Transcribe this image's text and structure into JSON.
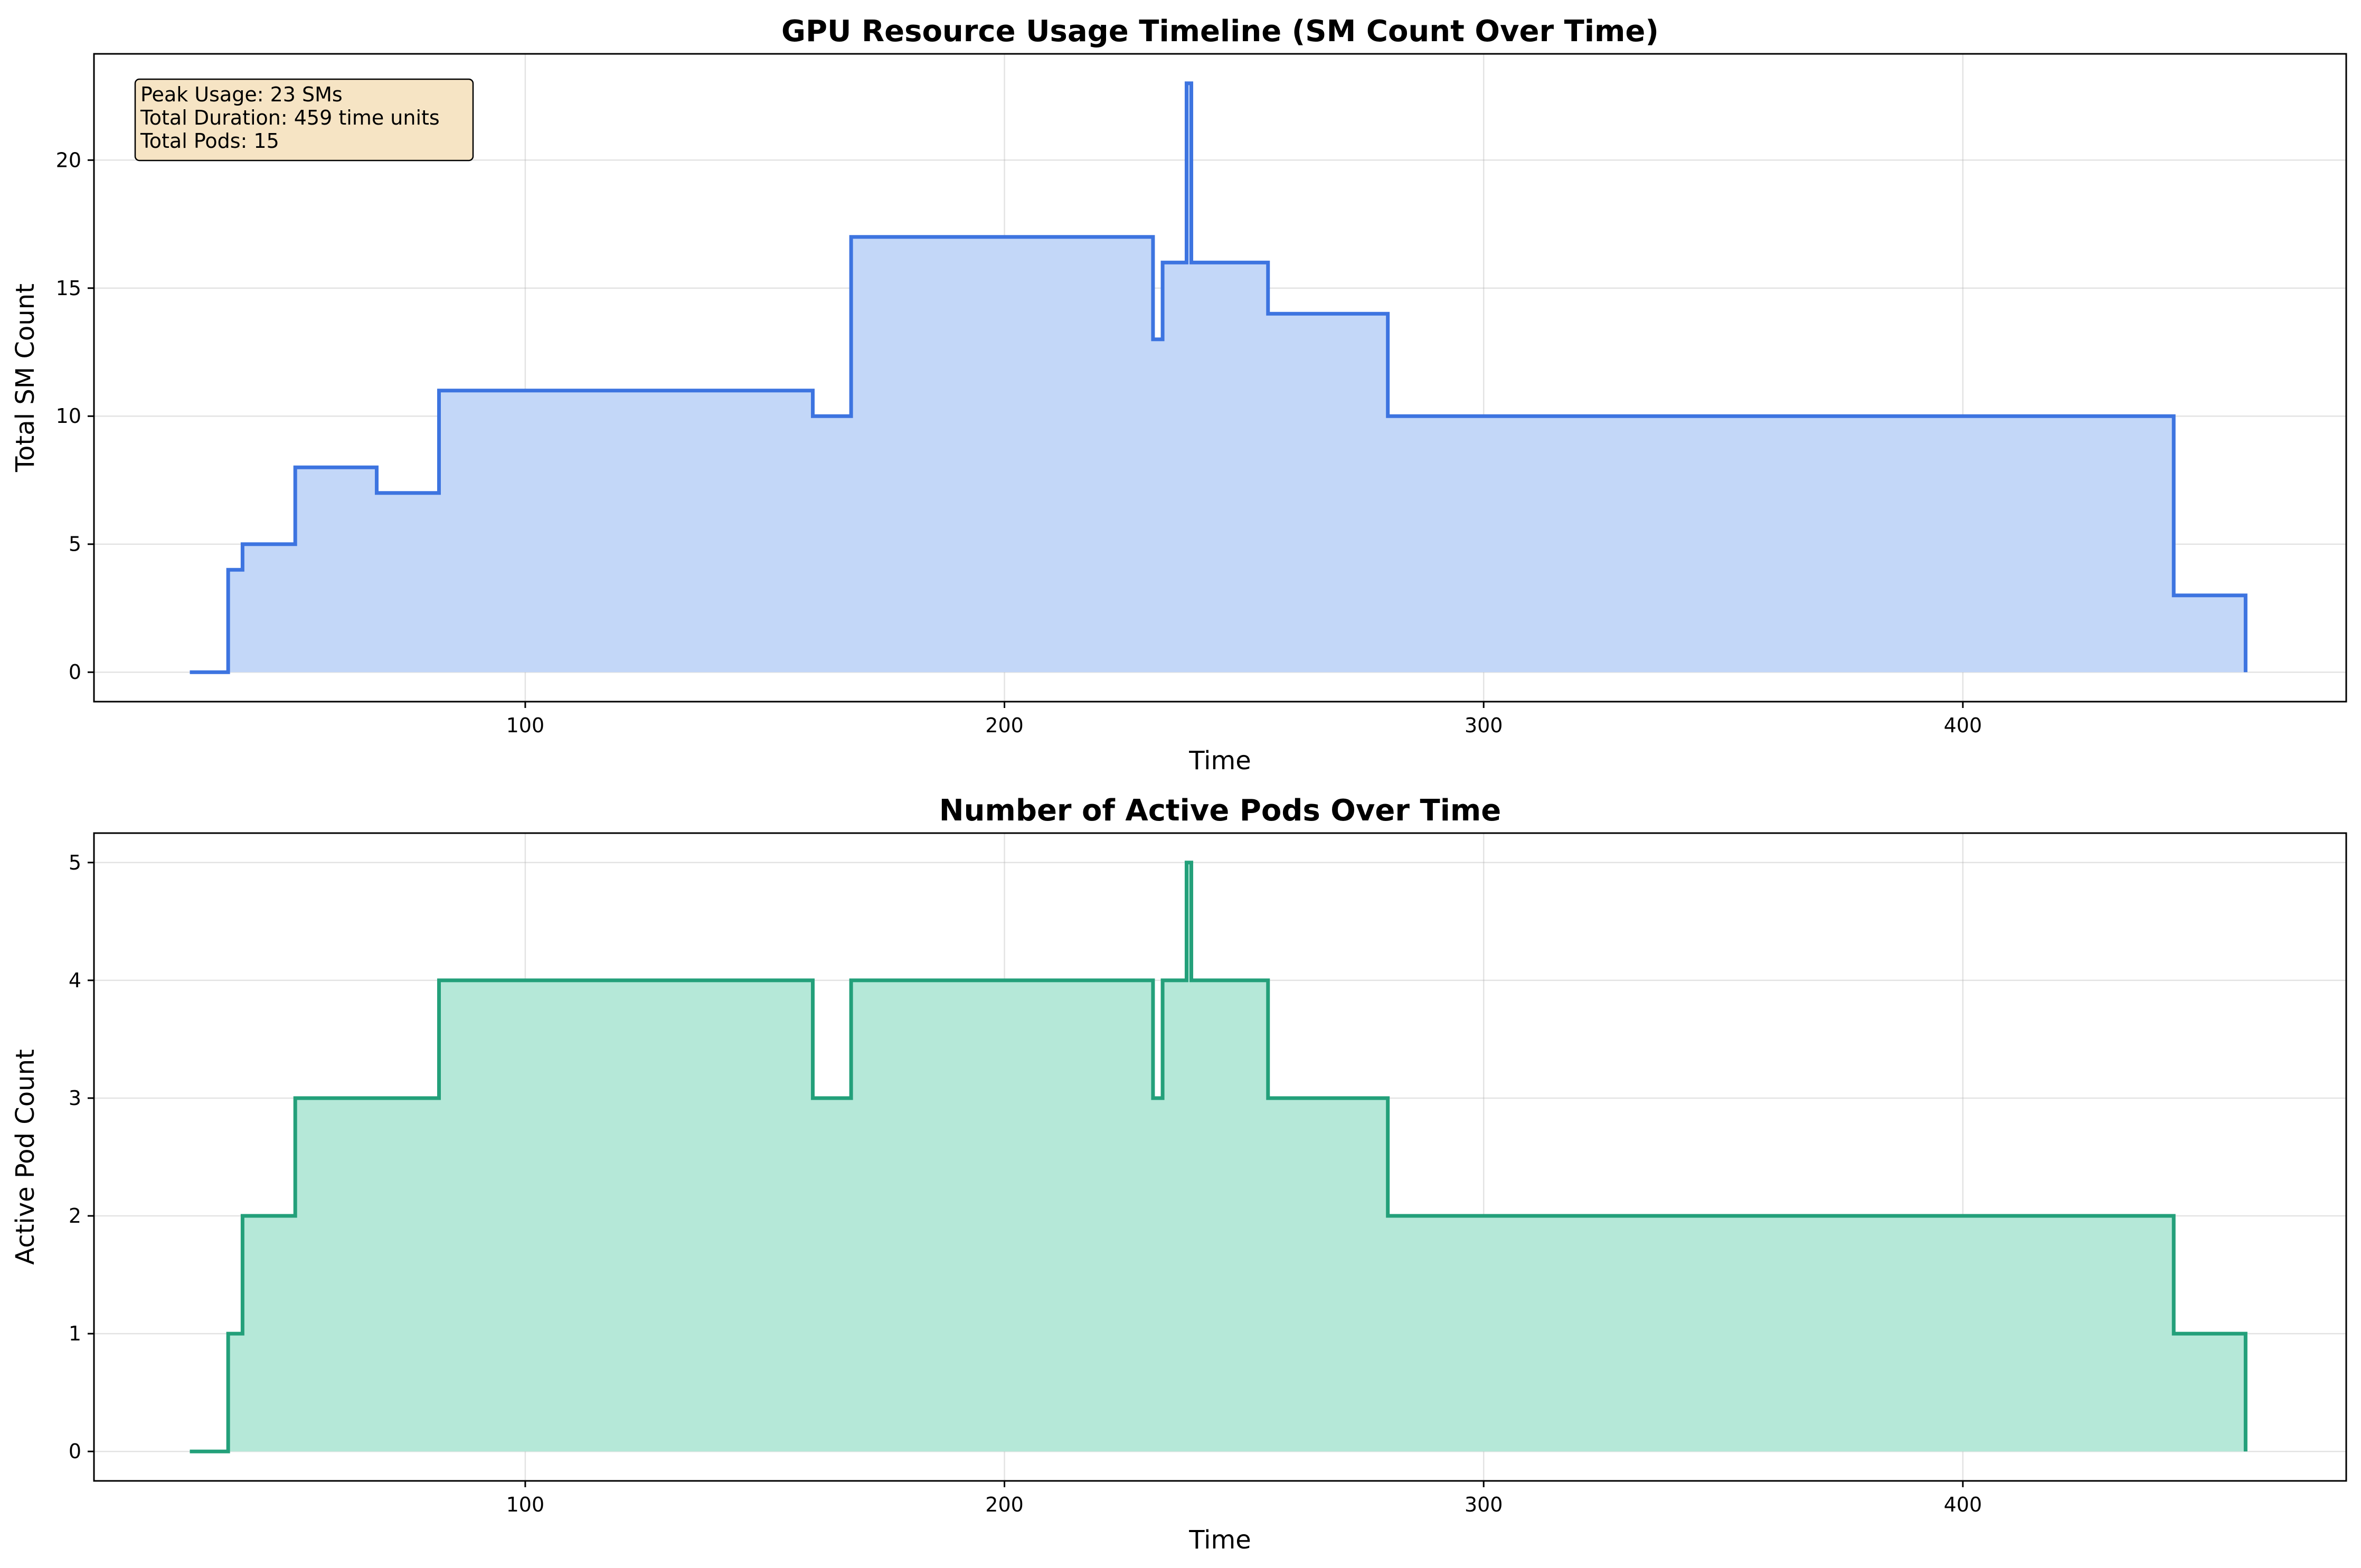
{
  "colors": {
    "sm_line": "#3d74e0",
    "sm_fill": "#c3d7f8",
    "pods_line": "#23a07a",
    "pods_fill": "#b5e8d8",
    "info_box_bg": "#f6e4c4"
  },
  "chart_data": [
    {
      "type": "area",
      "step": "post",
      "title": "GPU Resource Usage Timeline (SM Count Over Time)",
      "xlabel": "Time",
      "ylabel": "Total SM Count",
      "xlim": [
        10,
        480
      ],
      "ylim": [
        -1.15,
        24.15
      ],
      "xticks": [
        100,
        200,
        300,
        400
      ],
      "yticks": [
        0,
        5,
        10,
        15,
        20
      ],
      "grid": true,
      "info_box": {
        "position": "top-left",
        "lines": [
          "Peak Usage: 23 SMs",
          "Total Duration: 459 time units",
          "Total Pods: 15"
        ]
      },
      "series": [
        {
          "x": [
            30,
            38,
            41,
            52,
            69,
            82,
            160,
            168,
            231,
            233,
            238,
            239,
            255,
            280,
            444,
            459
          ],
          "y": [
            0,
            4,
            5,
            8,
            7,
            11,
            10,
            17,
            13,
            16,
            23,
            16,
            14,
            10,
            3,
            0
          ]
        }
      ]
    },
    {
      "type": "area",
      "step": "post",
      "title": "Number of Active Pods Over Time",
      "xlabel": "Time",
      "ylabel": "Active Pod Count",
      "xlim": [
        10,
        480
      ],
      "ylim": [
        -0.25,
        5.25
      ],
      "xticks": [
        100,
        200,
        300,
        400
      ],
      "yticks": [
        0,
        1,
        2,
        3,
        4,
        5
      ],
      "grid": true,
      "series": [
        {
          "x": [
            30,
            38,
            41,
            52,
            82,
            160,
            168,
            231,
            233,
            238,
            239,
            255,
            280,
            444,
            459
          ],
          "y": [
            0,
            1,
            2,
            3,
            4,
            3,
            4,
            3,
            4,
            5,
            4,
            3,
            2,
            1,
            0
          ]
        }
      ]
    }
  ]
}
